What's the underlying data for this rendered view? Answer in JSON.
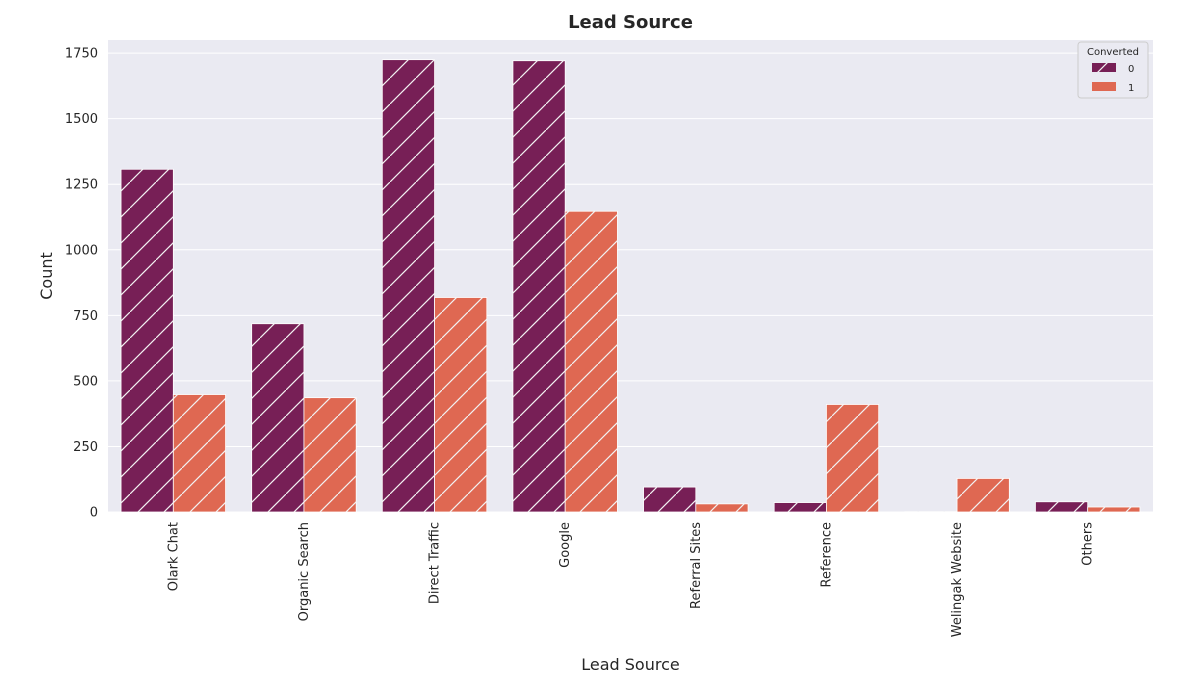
{
  "chart_data": {
    "type": "bar",
    "title": "Lead Source",
    "xlabel": "Lead Source",
    "ylabel": "Count",
    "ylim": [
      0,
      1800
    ],
    "yticks": [
      0,
      250,
      500,
      750,
      1000,
      1250,
      1500,
      1750
    ],
    "grid": true,
    "categories": [
      "Olark Chat",
      "Organic Search",
      "Direct Traffic",
      "Google",
      "Referral Sites",
      "Reference",
      "Welingak Website",
      "Others"
    ],
    "legend": {
      "title": "Converted",
      "position": "top-right"
    },
    "series": [
      {
        "name": "0",
        "color": "#771F56",
        "values": [
          1307,
          718,
          1725,
          1721,
          95,
          36,
          1,
          39
        ]
      },
      {
        "name": "1",
        "color": "#DF6852",
        "values": [
          448,
          436,
          818,
          1147,
          31,
          410,
          128,
          19
        ]
      }
    ]
  }
}
